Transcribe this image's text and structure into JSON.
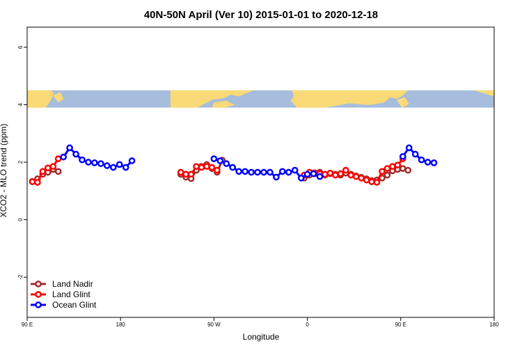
{
  "chart_data": {
    "type": "line",
    "title": "40N-50N April (Ver 10)   2015-01-01 to 2020-12-18",
    "xlabel": "Longitude",
    "ylabel": "XCO2 - MLO trend (ppm)",
    "xlim": [
      90,
      540
    ],
    "ylim": [
      -3.4,
      6.7
    ],
    "x_ticks": [
      {
        "value": 90,
        "label": "90 E"
      },
      {
        "value": 180,
        "label": "180"
      },
      {
        "value": 270,
        "label": "90 W"
      },
      {
        "value": 360,
        "label": "0"
      },
      {
        "value": 450,
        "label": "90 E"
      },
      {
        "value": 540,
        "label": "180"
      }
    ],
    "y_ticks": [
      {
        "value": -2,
        "label": "-2"
      },
      {
        "value": 0,
        "label": "0"
      },
      {
        "value": 2,
        "label": "2"
      },
      {
        "value": 4,
        "label": "4"
      },
      {
        "value": 6,
        "label": "6"
      }
    ],
    "map_band": {
      "ymin": 3.9,
      "ymax": 4.5,
      "ocean_color": "#a7bddc",
      "land_color": "#fad977"
    },
    "legend_position": "bottom-left",
    "series": [
      {
        "name": "Land Nadir",
        "color": "#a52a2a",
        "segments": [
          [
            [
              95,
              1.33
            ],
            [
              100,
              1.42
            ],
            [
              105,
              1.58
            ],
            [
              110,
              1.65
            ],
            [
              115,
              1.75
            ],
            [
              120,
              1.68
            ]
          ],
          [
            [
              238,
              1.58
            ],
            [
              243,
              1.48
            ],
            [
              248,
              1.43
            ],
            [
              253,
              1.72
            ],
            [
              258,
              1.85
            ],
            [
              263,
              1.92
            ],
            [
              268,
              1.78
            ],
            [
              273,
              1.65
            ],
            [
              278,
              2.07
            ]
          ],
          [
            [
              357,
              1.45
            ],
            [
              362,
              1.55
            ],
            [
              367,
              1.6
            ],
            [
              372,
              1.65
            ],
            [
              377,
              1.55
            ],
            [
              382,
              1.6
            ],
            [
              387,
              1.58
            ],
            [
              392,
              1.55
            ],
            [
              397,
              1.62
            ],
            [
              402,
              1.58
            ],
            [
              407,
              1.52
            ],
            [
              412,
              1.47
            ],
            [
              417,
              1.42
            ],
            [
              422,
              1.36
            ],
            [
              427,
              1.38
            ],
            [
              432,
              1.45
            ],
            [
              437,
              1.55
            ],
            [
              442,
              1.7
            ],
            [
              447,
              1.75
            ],
            [
              452,
              1.78
            ],
            [
              457,
              1.72
            ]
          ]
        ]
      },
      {
        "name": "Land Glint",
        "color": "#ff0000",
        "segments": [
          [
            [
              95,
              1.32
            ],
            [
              100,
              1.3
            ],
            [
              105,
              1.68
            ],
            [
              110,
              1.8
            ],
            [
              115,
              1.85
            ],
            [
              120,
              2.12
            ]
          ],
          [
            [
              238,
              1.65
            ],
            [
              243,
              1.58
            ],
            [
              248,
              1.58
            ],
            [
              253,
              1.85
            ],
            [
              258,
              1.82
            ],
            [
              263,
              1.85
            ],
            [
              268,
              1.82
            ],
            [
              273,
              1.72
            ]
          ],
          [
            [
              357,
              1.55
            ],
            [
              362,
              1.65
            ],
            [
              367,
              1.63
            ],
            [
              372,
              1.6
            ],
            [
              377,
              1.58
            ],
            [
              382,
              1.62
            ],
            [
              387,
              1.55
            ],
            [
              392,
              1.6
            ],
            [
              397,
              1.72
            ],
            [
              402,
              1.55
            ],
            [
              407,
              1.5
            ],
            [
              412,
              1.45
            ],
            [
              417,
              1.38
            ],
            [
              422,
              1.32
            ],
            [
              427,
              1.3
            ],
            [
              432,
              1.68
            ],
            [
              437,
              1.78
            ],
            [
              442,
              1.85
            ],
            [
              447,
              1.9
            ],
            [
              452,
              2.12
            ]
          ]
        ]
      },
      {
        "name": "Ocean Glint",
        "color": "#0000ff",
        "segments": [
          [
            [
              125,
              2.18
            ],
            [
              131,
              2.5
            ],
            [
              137,
              2.28
            ],
            [
              143,
              2.08
            ],
            [
              149,
              2.0
            ],
            [
              155,
              1.98
            ],
            [
              161,
              1.95
            ],
            [
              167,
              1.88
            ],
            [
              173,
              1.82
            ],
            [
              179,
              1.92
            ],
            [
              185,
              1.82
            ],
            [
              191,
              2.05
            ]
          ],
          [
            [
              270,
              2.12
            ],
            [
              276,
              2.05
            ],
            [
              282,
              1.95
            ],
            [
              288,
              1.82
            ],
            [
              294,
              1.68
            ],
            [
              300,
              1.68
            ],
            [
              306,
              1.65
            ],
            [
              312,
              1.65
            ],
            [
              318,
              1.65
            ],
            [
              324,
              1.65
            ],
            [
              330,
              1.48
            ],
            [
              336,
              1.68
            ],
            [
              342,
              1.65
            ],
            [
              348,
              1.72
            ],
            [
              354,
              1.45
            ],
            [
              360,
              1.58
            ],
            [
              366,
              1.6
            ],
            [
              372,
              1.5
            ]
          ],
          [
            [
              452,
              2.2
            ],
            [
              458,
              2.5
            ],
            [
              464,
              2.28
            ],
            [
              470,
              2.08
            ],
            [
              476,
              2.0
            ],
            [
              482,
              1.98
            ]
          ]
        ]
      }
    ]
  }
}
